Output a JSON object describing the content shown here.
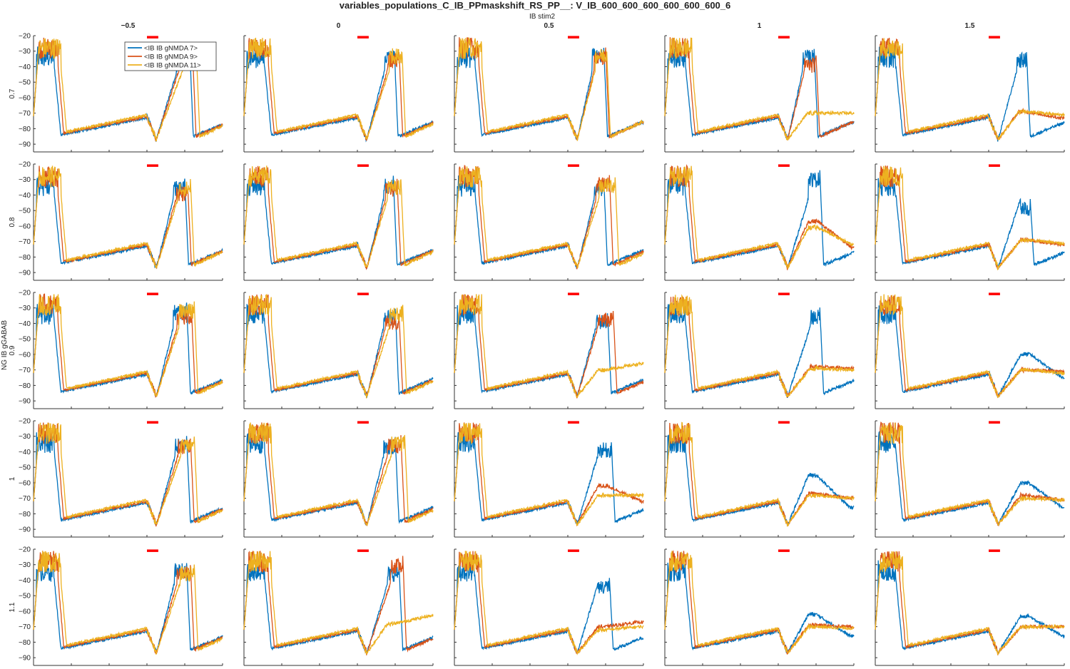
{
  "title": "variables_populations_C_IB_PPmaskshift_RS_PP__: V_IB_600_600_600_600_600_600_6",
  "column_supertitle": "IB stim2",
  "row_supertitle": "NG IB gGABAB",
  "column_titles": [
    "-0.5",
    "0",
    "0.5",
    "1",
    "1.5"
  ],
  "row_titles": [
    "0.7",
    "0.8",
    "0.9",
    "1",
    "1.1"
  ],
  "legend": {
    "entries": [
      "<IB IB gNMDA 7>",
      "<IB IB gNMDA 9>",
      "<IB IB gNMDA 11>"
    ],
    "placement": "inside top-right of first panel"
  },
  "colors": {
    "series": [
      "#0072BD",
      "#D95319",
      "#EDB120"
    ],
    "marker": "#FF0000"
  },
  "chart_data": {
    "type": "line",
    "layout": "small multiples grid, 5 rows x 5 columns",
    "xlim": [
      0,
      1000
    ],
    "ylim": [
      -95,
      -20
    ],
    "x_ticks": [
      0,
      200,
      400,
      600,
      800,
      1000
    ],
    "y_ticks": [
      -90,
      -80,
      -70,
      -60,
      -50,
      -40,
      -30,
      -20
    ],
    "stim_marker": {
      "x_start": 600,
      "x_end": 660,
      "y": -21
    },
    "series_names": [
      "<IB IB gNMDA 7>",
      "<IB IB gNMDA 9>",
      "<IB IB gNMDA 11>"
    ],
    "panels": [
      [
        {
          "peaks": [
            [
              760,
              825,
              -23
            ],
            [
              770,
              840,
              -28
            ],
            [
              790,
              860,
              -28
            ]
          ]
        },
        {
          "peaks": [
            [
              745,
              795,
              -28
            ],
            [
              760,
              820,
              -30
            ],
            [
              770,
              835,
              -27
            ]
          ]
        },
        {
          "peaks": [
            [
              730,
              790,
              -27
            ],
            [
              740,
              800,
              -28
            ],
            [
              745,
              805,
              -27
            ]
          ]
        },
        {
          "peaks": [
            [
              730,
              790,
              -28
            ],
            [
              740,
              800,
              -33
            ],
            [
              755,
              830,
              -70,
              -70
            ]
          ]
        },
        {
          "peaks": [
            [
              750,
              800,
              -30
            ],
            [
              760,
              795,
              -69,
              -73
            ],
            [
              760,
              795,
              -69,
              -71
            ]
          ]
        }
      ],
      [
        {
          "peaks": [
            [
              740,
              800,
              -30
            ],
            [
              755,
              815,
              -33
            ],
            [
              765,
              830,
              -30
            ]
          ]
        },
        {
          "peaks": [
            [
              740,
              790,
              -28
            ],
            [
              750,
              810,
              -30
            ],
            [
              760,
              830,
              -29
            ]
          ]
        },
        {
          "peaks": [
            [
              740,
              790,
              -30
            ],
            [
              750,
              820,
              -27
            ],
            [
              765,
              850,
              -28
            ]
          ]
        },
        {
          "peaks": [
            [
              760,
              820,
              -24
            ],
            [
              760,
              810,
              -57,
              -74
            ],
            [
              760,
              810,
              -61,
              -72
            ]
          ]
        },
        {
          "peaks": [
            [
              770,
              820,
              -43
            ],
            [
              770,
              810,
              -69,
              -72
            ],
            [
              770,
              810,
              -69,
              -71
            ]
          ]
        }
      ],
      [
        {
          "peaks": [
            [
              740,
              810,
              -27
            ],
            [
              760,
              835,
              -30
            ],
            [
              770,
              850,
              -26
            ]
          ]
        },
        {
          "peaks": [
            [
              740,
              800,
              -30
            ],
            [
              750,
              820,
              -33
            ],
            [
              770,
              840,
              -28
            ]
          ]
        },
        {
          "peaks": [
            [
              750,
              810,
              -33
            ],
            [
              760,
              840,
              -32
            ],
            [
              760,
              800,
              -70,
              -66
            ]
          ]
        },
        {
          "peaks": [
            [
              770,
              820,
              -30
            ],
            [
              770,
              810,
              -68,
              -69
            ],
            [
              770,
              810,
              -69,
              -70
            ]
          ]
        },
        {
          "peaks": [
            [
              770,
              820,
              -60
            ],
            [
              770,
              810,
              -70,
              -71
            ],
            [
              770,
              810,
              -70,
              -72
            ]
          ]
        }
      ],
      [
        {
          "peaks": [
            [
              750,
              810,
              -30
            ],
            [
              765,
              830,
              -31
            ],
            [
              780,
              850,
              -30
            ]
          ]
        },
        {
          "peaks": [
            [
              740,
              800,
              -31
            ],
            [
              760,
              830,
              -30
            ],
            [
              780,
              850,
              -29
            ]
          ]
        },
        {
          "peaks": [
            [
              760,
              830,
              -33
            ],
            [
              760,
              810,
              -62,
              -72
            ],
            [
              760,
              810,
              -68,
              -68
            ]
          ]
        },
        {
          "peaks": [
            [
              760,
              800,
              -55
            ],
            [
              760,
              800,
              -67,
              -70
            ],
            [
              760,
              800,
              -68,
              -70
            ]
          ]
        },
        {
          "peaks": [
            [
              770,
              810,
              -60
            ],
            [
              770,
              800,
              -68,
              -71
            ],
            [
              770,
              800,
              -70,
              -71
            ]
          ]
        }
      ],
      [
        {
          "peaks": [
            [
              745,
              810,
              -28
            ],
            [
              760,
              830,
              -30
            ],
            [
              775,
              850,
              -30
            ]
          ]
        },
        {
          "peaks": [
            [
              760,
              820,
              -30
            ],
            [
              775,
              840,
              -25
            ],
            [
              760,
              800,
              -68,
              -63
            ]
          ]
        },
        {
          "peaks": [
            [
              760,
              820,
              -38
            ],
            [
              760,
              800,
              -70,
              -67
            ],
            [
              760,
              800,
              -72,
              -70
            ]
          ]
        },
        {
          "peaks": [
            [
              760,
              800,
              -62
            ],
            [
              760,
              800,
              -69,
              -70
            ],
            [
              760,
              800,
              -70,
              -71
            ]
          ]
        },
        {
          "peaks": [
            [
              770,
              810,
              -63
            ],
            [
              770,
              800,
              -70,
              -70
            ],
            [
              770,
              800,
              -70,
              -70
            ]
          ]
        }
      ]
    ]
  }
}
